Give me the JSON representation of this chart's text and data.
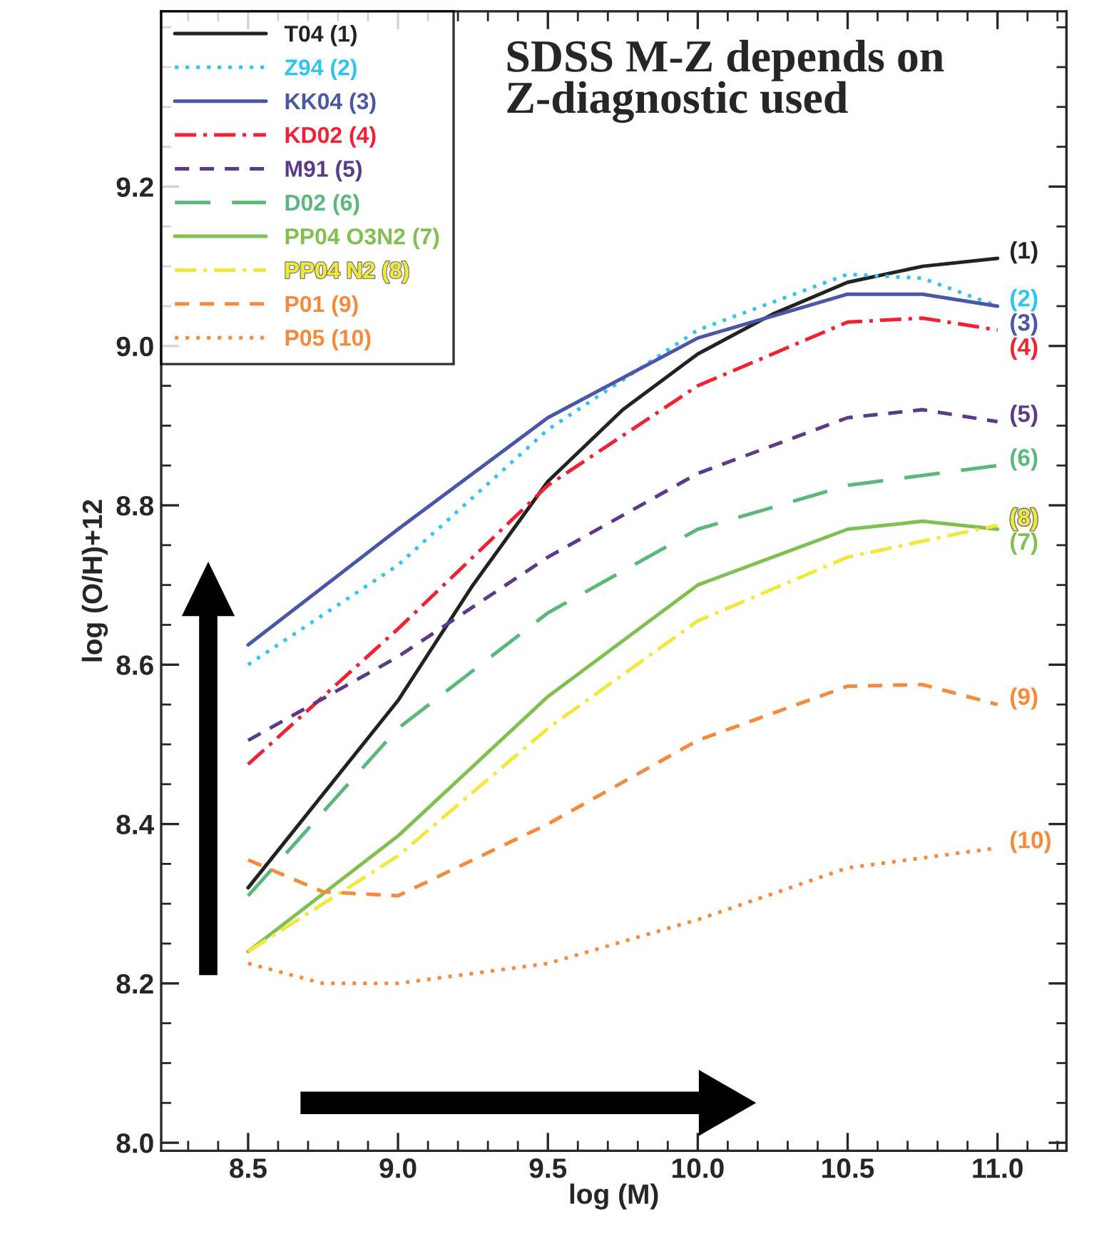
{
  "chart_data": {
    "type": "line",
    "xlabel": "log (M)",
    "ylabel": "log (O/H)+12",
    "series": [
      {
        "name": "T04 (1)",
        "color": "#222222",
        "line_style": "solid",
        "x": [
          8.5,
          9.0,
          9.25,
          9.5,
          9.75,
          10.0,
          10.25,
          10.5,
          10.75,
          11.0
        ],
        "values": [
          8.32,
          8.555,
          8.7,
          8.83,
          8.92,
          8.99,
          9.04,
          9.08,
          9.1,
          9.11
        ]
      },
      {
        "name": "Z94 (2)",
        "color": "#33c3f0",
        "line_style": "dotted",
        "x": [
          8.5,
          9.0,
          9.5,
          10.0,
          10.5,
          10.75,
          11.0
        ],
        "values": [
          8.6,
          8.725,
          8.895,
          9.02,
          9.09,
          9.085,
          9.05
        ]
      },
      {
        "name": "KK04 (3)",
        "color": "#4a56a6",
        "line_style": "solid",
        "x": [
          8.5,
          9.0,
          9.5,
          10.0,
          10.5,
          10.75,
          11.0
        ],
        "values": [
          8.625,
          8.77,
          8.91,
          9.01,
          9.065,
          9.065,
          9.05
        ]
      },
      {
        "name": "KD02 (4)",
        "color": "#ee2233",
        "line_style": "dashdot",
        "x": [
          8.5,
          9.0,
          9.5,
          10.0,
          10.5,
          10.75,
          11.0
        ],
        "values": [
          8.475,
          8.645,
          8.825,
          8.95,
          9.03,
          9.035,
          9.02
        ]
      },
      {
        "name": "M91 (5)",
        "color": "#5b3a8c",
        "line_style": "dashed",
        "x": [
          8.5,
          9.0,
          9.5,
          10.0,
          10.5,
          10.75,
          11.0
        ],
        "values": [
          8.505,
          8.61,
          8.735,
          8.84,
          8.91,
          8.92,
          8.905
        ]
      },
      {
        "name": "D02 (6)",
        "color": "#5cb87a",
        "line_style": "longdash",
        "x": [
          8.5,
          9.0,
          9.5,
          10.0,
          10.5,
          11.0
        ],
        "values": [
          8.31,
          8.52,
          8.665,
          8.77,
          8.825,
          8.85
        ]
      },
      {
        "name": "PP04 O3N2 (7)",
        "color": "#80c050",
        "line_style": "solid",
        "x": [
          8.5,
          9.0,
          9.5,
          10.0,
          10.5,
          10.75,
          11.0
        ],
        "values": [
          8.24,
          8.385,
          8.56,
          8.7,
          8.77,
          8.78,
          8.77
        ]
      },
      {
        "name": "PP04 N2 (8)",
        "color": "#f2e83a",
        "line_style": "dashdot",
        "x": [
          8.5,
          9.0,
          9.5,
          10.0,
          10.5,
          11.0
        ],
        "values": [
          8.24,
          8.36,
          8.52,
          8.655,
          8.735,
          8.775
        ]
      },
      {
        "name": "P01 (9)",
        "color": "#f58a3c",
        "line_style": "dashed",
        "x": [
          8.5,
          8.75,
          9.0,
          9.5,
          10.0,
          10.5,
          10.75,
          11.0
        ],
        "values": [
          8.355,
          8.315,
          8.31,
          8.4,
          8.505,
          8.573,
          8.575,
          8.55
        ]
      },
      {
        "name": "P05 (10)",
        "color": "#f58a3c",
        "line_style": "dotted",
        "x": [
          8.5,
          8.75,
          9.0,
          9.5,
          10.0,
          10.5,
          11.0
        ],
        "values": [
          8.225,
          8.2,
          8.2,
          8.225,
          8.28,
          8.345,
          8.37
        ]
      }
    ],
    "annotations": [
      "SDSS M-Z depends on Z-diagnostic used",
      "(1)",
      "(2)",
      "(3)",
      "(4)",
      "(5)",
      "(6)",
      "(7)",
      "(8)",
      "(9)",
      "(10)"
    ],
    "xlim": [
      8.21,
      11.23
    ],
    "ylim": [
      7.99,
      9.42
    ],
    "xticks": [
      {
        "value": 8.5,
        "label": "8.5"
      },
      {
        "value": 9.0,
        "label": "9.0"
      },
      {
        "value": 9.5,
        "label": "9.5"
      },
      {
        "value": 10.0,
        "label": "10.0"
      },
      {
        "value": 10.5,
        "label": "10.5"
      },
      {
        "value": 11.0,
        "label": "11.0"
      }
    ],
    "yticks": [
      {
        "value": 8.0,
        "label": "8.0"
      },
      {
        "value": 8.2,
        "label": "8.2"
      },
      {
        "value": 8.4,
        "label": "8.4"
      },
      {
        "value": 8.6,
        "label": "8.6"
      },
      {
        "value": 8.8,
        "label": "8.8"
      },
      {
        "value": 9.0,
        "label": "9.0"
      },
      {
        "value": 9.2,
        "label": "9.2"
      }
    ],
    "grid": false,
    "legend": "top left",
    "marker": "none"
  }
}
